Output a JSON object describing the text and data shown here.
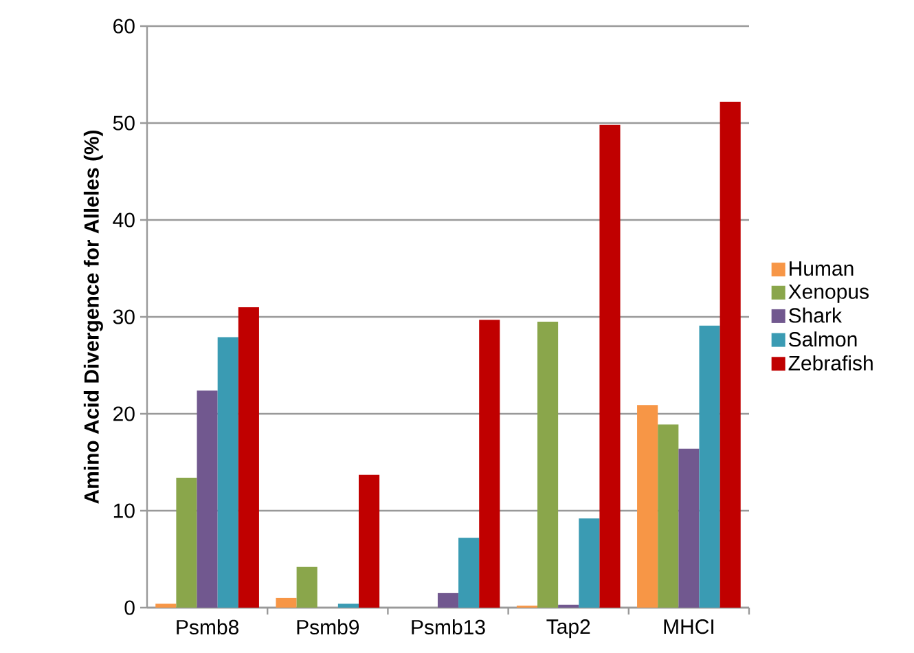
{
  "chart_data": {
    "type": "bar",
    "ylabel": "Amino Acid Divergence for Alleles (%)",
    "categories": [
      "Psmb8",
      "Psmb9",
      "Psmb13",
      "Tap2",
      "MHCI"
    ],
    "series": [
      {
        "name": "Human",
        "color": "#f79646",
        "values": [
          0.4,
          1.0,
          0,
          0.2,
          20.9
        ]
      },
      {
        "name": "Xenopus",
        "color": "#8aa64b",
        "values": [
          13.4,
          4.2,
          0,
          29.5,
          18.9
        ]
      },
      {
        "name": "Shark",
        "color": "#71588f",
        "values": [
          22.4,
          0,
          1.5,
          0.3,
          16.4
        ]
      },
      {
        "name": "Salmon",
        "color": "#3a9bb3",
        "values": [
          27.9,
          0.4,
          7.2,
          9.2,
          29.1
        ]
      },
      {
        "name": "Zebrafish",
        "color": "#c00000",
        "values": [
          31.0,
          13.7,
          29.7,
          49.8,
          52.2
        ]
      }
    ],
    "ylim": [
      0,
      60
    ],
    "yticks": [
      0,
      10,
      20,
      30,
      40,
      50,
      60
    ],
    "grid": "y",
    "legend": "right"
  }
}
